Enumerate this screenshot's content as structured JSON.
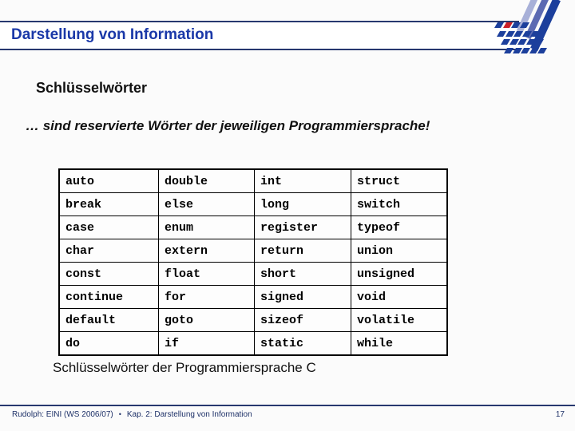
{
  "header": {
    "title": "Darstellung von Information"
  },
  "heading": "Schlüsselwörter",
  "subtitle": "… sind reservierte Wörter der jeweiligen Programmiersprache!",
  "table": {
    "rows": [
      [
        "auto",
        "double",
        "int",
        "struct"
      ],
      [
        "break",
        "else",
        "long",
        "switch"
      ],
      [
        "case",
        "enum",
        "register",
        "typeof"
      ],
      [
        "char",
        "extern",
        "return",
        "union"
      ],
      [
        "const",
        "float",
        "short",
        "unsigned"
      ],
      [
        "continue",
        "for",
        "signed",
        "void"
      ],
      [
        "default",
        "goto",
        "sizeof",
        "volatile"
      ],
      [
        "do",
        "if",
        "static",
        "while"
      ]
    ]
  },
  "caption": "Schlüsselwörter der Programmiersprache C",
  "footer": {
    "course": "Rudolph: EINI (WS 2006/07)",
    "bullet": "•",
    "chapter": "Kap. 2: Darstellung von Information",
    "page": "17"
  },
  "colors": {
    "title_blue": "#1a38a8",
    "line_navy": "#27386f",
    "footer_navy": "#1e3168",
    "tile_blue": "#1c3f9c",
    "tile_red": "#cc2028",
    "stripe_light": "#a8b0d8",
    "stripe_mid": "#5c6ab2",
    "stripe_dark": "#1c3f9c",
    "table_border": "#000000"
  }
}
